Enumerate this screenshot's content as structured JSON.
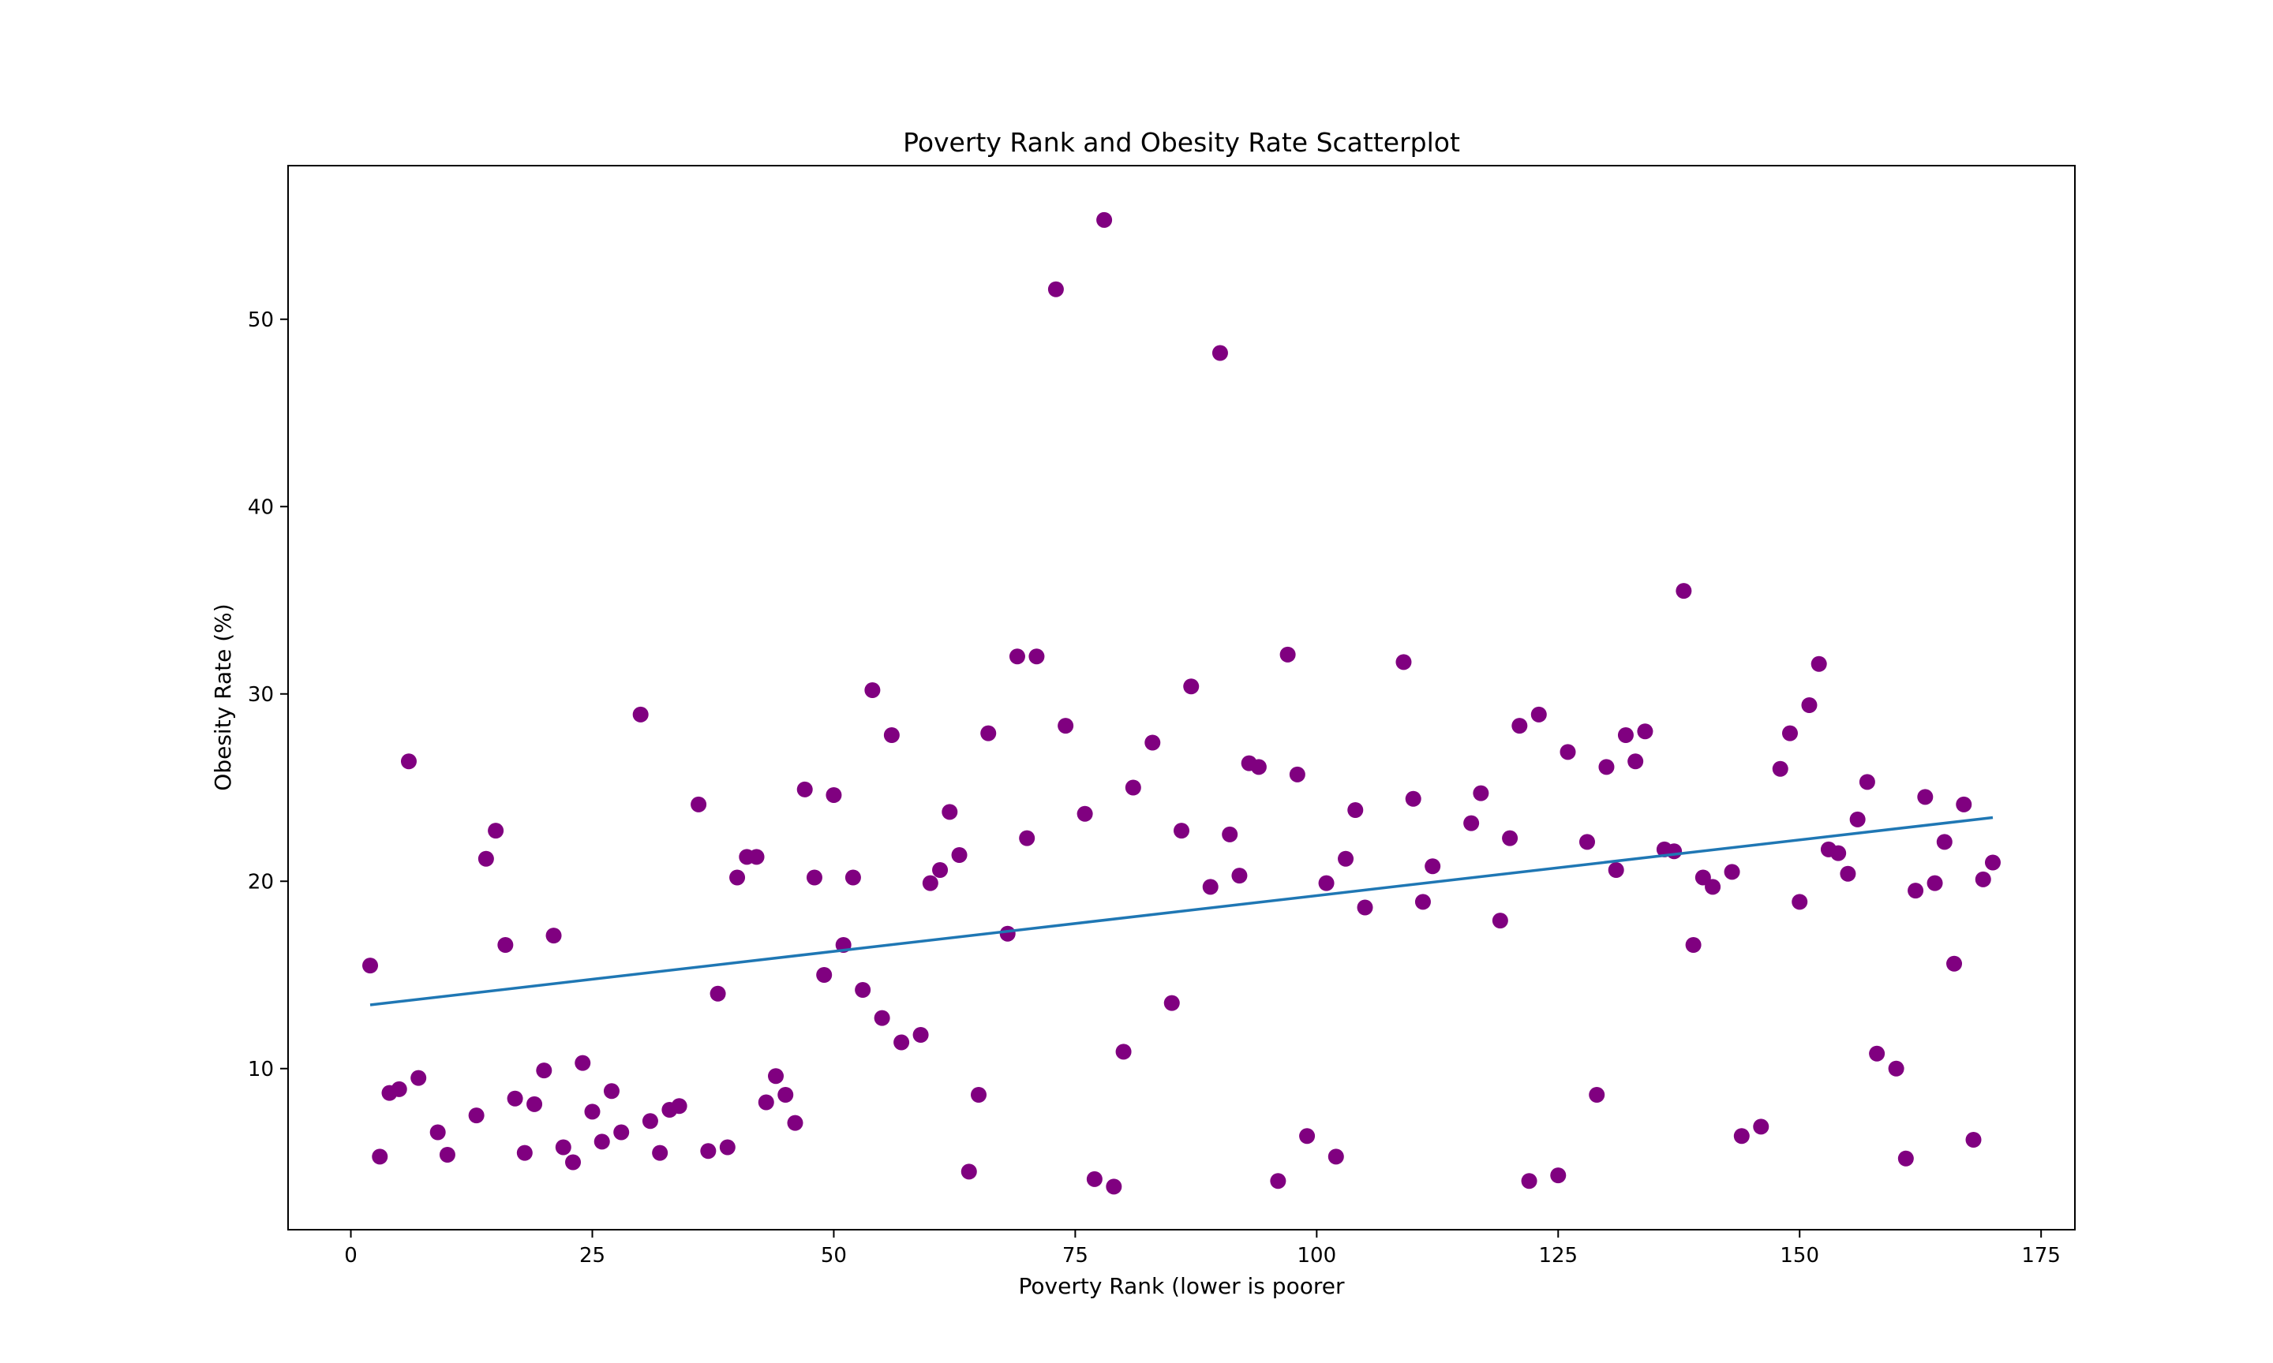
{
  "chart_data": {
    "type": "scatter",
    "title": "Poverty Rank and Obesity Rate Scatterplot",
    "xlabel": "Poverty Rank (lower is poorer",
    "ylabel": "Obesity Rate (%)",
    "xlim": [
      -6.5,
      178.5
    ],
    "ylim": [
      1.4,
      58.2
    ],
    "xticks": [
      0,
      25,
      50,
      75,
      100,
      125,
      150,
      175
    ],
    "yticks": [
      10,
      20,
      30,
      40,
      50
    ],
    "grid": false,
    "legend": "none",
    "point_color": "#800080",
    "line_color": "#1f77b4",
    "trendline": {
      "x": [
        2,
        170
      ],
      "y": [
        13.4,
        23.4
      ]
    },
    "points": [
      [
        2,
        15.5
      ],
      [
        3,
        5.3
      ],
      [
        4,
        8.7
      ],
      [
        5,
        8.9
      ],
      [
        6,
        26.4
      ],
      [
        7,
        9.5
      ],
      [
        9,
        6.6
      ],
      [
        10,
        5.4
      ],
      [
        13,
        7.5
      ],
      [
        14,
        21.2
      ],
      [
        15,
        22.7
      ],
      [
        16,
        16.6
      ],
      [
        17,
        8.4
      ],
      [
        18,
        5.5
      ],
      [
        19,
        8.1
      ],
      [
        20,
        9.9
      ],
      [
        21,
        17.1
      ],
      [
        22,
        5.8
      ],
      [
        23,
        5.0
      ],
      [
        24,
        10.3
      ],
      [
        25,
        7.7
      ],
      [
        26,
        6.1
      ],
      [
        27,
        8.8
      ],
      [
        28,
        6.6
      ],
      [
        30,
        28.9
      ],
      [
        31,
        7.2
      ],
      [
        32,
        5.5
      ],
      [
        33,
        7.8
      ],
      [
        34,
        8.0
      ],
      [
        36,
        24.1
      ],
      [
        37,
        5.6
      ],
      [
        38,
        14.0
      ],
      [
        39,
        5.8
      ],
      [
        40,
        20.2
      ],
      [
        41,
        21.3
      ],
      [
        42,
        21.3
      ],
      [
        43,
        8.2
      ],
      [
        44,
        9.6
      ],
      [
        45,
        8.6
      ],
      [
        46,
        7.1
      ],
      [
        47,
        24.9
      ],
      [
        48,
        20.2
      ],
      [
        49,
        15.0
      ],
      [
        50,
        24.6
      ],
      [
        51,
        16.6
      ],
      [
        52,
        20.2
      ],
      [
        53,
        14.2
      ],
      [
        54,
        30.2
      ],
      [
        55,
        12.7
      ],
      [
        56,
        27.8
      ],
      [
        57,
        11.4
      ],
      [
        59,
        11.8
      ],
      [
        60,
        19.9
      ],
      [
        61,
        20.6
      ],
      [
        62,
        23.7
      ],
      [
        63,
        21.4
      ],
      [
        64,
        4.5
      ],
      [
        65,
        8.6
      ],
      [
        66,
        27.9
      ],
      [
        68,
        17.2
      ],
      [
        69,
        32.0
      ],
      [
        70,
        22.3
      ],
      [
        71,
        32.0
      ],
      [
        73,
        51.6
      ],
      [
        74,
        28.3
      ],
      [
        76,
        23.6
      ],
      [
        77,
        4.1
      ],
      [
        78,
        55.3
      ],
      [
        79,
        3.7
      ],
      [
        80,
        10.9
      ],
      [
        81,
        25.0
      ],
      [
        83,
        27.4
      ],
      [
        85,
        13.5
      ],
      [
        86,
        22.7
      ],
      [
        87,
        30.4
      ],
      [
        89,
        19.7
      ],
      [
        90,
        48.2
      ],
      [
        91,
        22.5
      ],
      [
        92,
        20.3
      ],
      [
        93,
        26.3
      ],
      [
        94,
        26.1
      ],
      [
        96,
        4.0
      ],
      [
        97,
        32.1
      ],
      [
        98,
        25.7
      ],
      [
        99,
        6.4
      ],
      [
        101,
        19.9
      ],
      [
        102,
        5.3
      ],
      [
        103,
        21.2
      ],
      [
        104,
        23.8
      ],
      [
        105,
        18.6
      ],
      [
        109,
        31.7
      ],
      [
        110,
        24.4
      ],
      [
        111,
        18.9
      ],
      [
        112,
        20.8
      ],
      [
        116,
        23.1
      ],
      [
        117,
        24.7
      ],
      [
        119,
        17.9
      ],
      [
        120,
        22.3
      ],
      [
        121,
        28.3
      ],
      [
        122,
        4.0
      ],
      [
        123,
        28.9
      ],
      [
        125,
        4.3
      ],
      [
        126,
        26.9
      ],
      [
        128,
        22.1
      ],
      [
        129,
        8.6
      ],
      [
        130,
        26.1
      ],
      [
        131,
        20.6
      ],
      [
        132,
        27.8
      ],
      [
        133,
        26.4
      ],
      [
        134,
        28.0
      ],
      [
        136,
        21.7
      ],
      [
        137,
        21.6
      ],
      [
        138,
        35.5
      ],
      [
        139,
        16.6
      ],
      [
        140,
        20.2
      ],
      [
        141,
        19.7
      ],
      [
        143,
        20.5
      ],
      [
        144,
        6.4
      ],
      [
        146,
        6.9
      ],
      [
        148,
        26.0
      ],
      [
        149,
        27.9
      ],
      [
        150,
        18.9
      ],
      [
        151,
        29.4
      ],
      [
        152,
        31.6
      ],
      [
        153,
        21.7
      ],
      [
        154,
        21.5
      ],
      [
        155,
        20.4
      ],
      [
        156,
        23.3
      ],
      [
        157,
        25.3
      ],
      [
        158,
        10.8
      ],
      [
        160,
        10.0
      ],
      [
        161,
        5.2
      ],
      [
        162,
        19.5
      ],
      [
        163,
        24.5
      ],
      [
        164,
        19.9
      ],
      [
        165,
        22.1
      ],
      [
        166,
        15.6
      ],
      [
        167,
        24.1
      ],
      [
        168,
        6.2
      ],
      [
        169,
        20.1
      ],
      [
        170,
        21.0
      ]
    ]
  }
}
